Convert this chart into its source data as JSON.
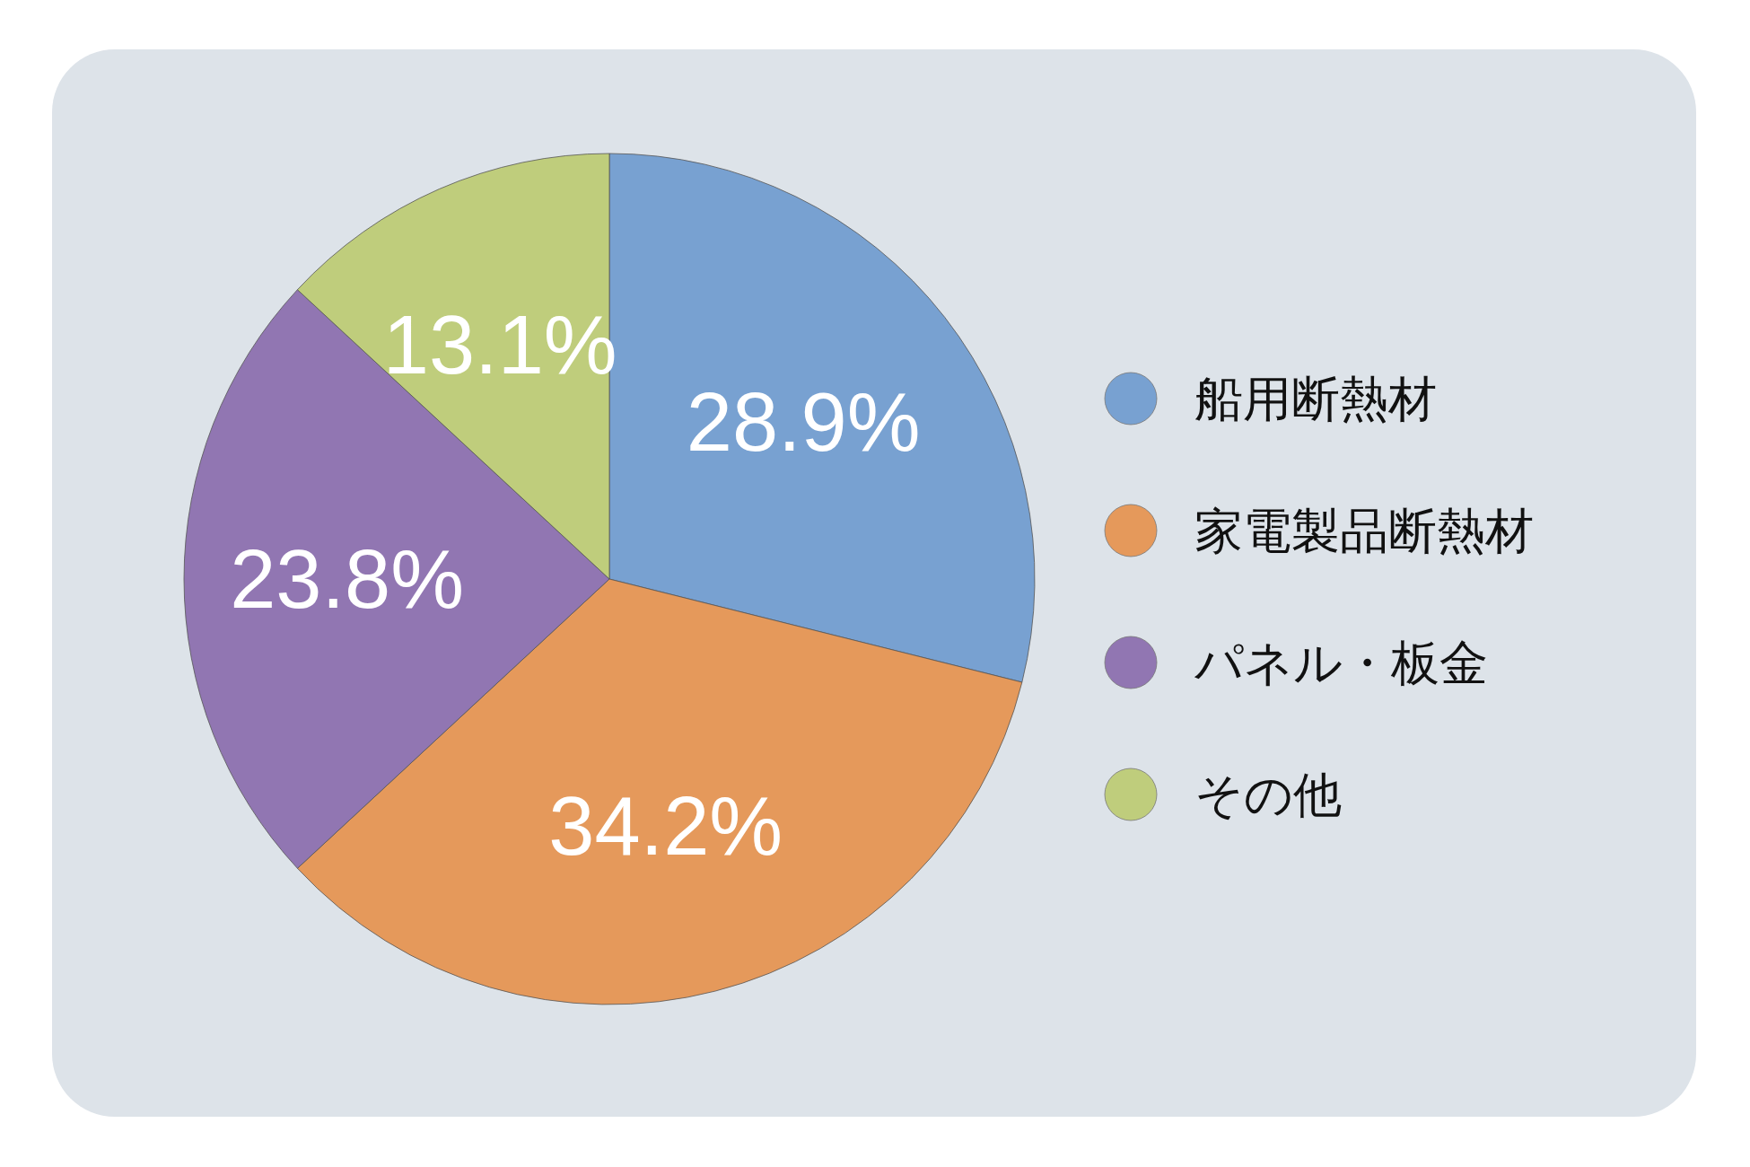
{
  "chart_data": {
    "type": "pie",
    "categories": [
      "船用断熱材",
      "家電製品断熱材",
      "パネル・板金",
      "その他"
    ],
    "values": [
      28.9,
      34.2,
      23.8,
      13.1
    ],
    "colors": [
      "#78a1d1",
      "#e5995b",
      "#9176b2",
      "#bfcd7c"
    ],
    "value_labels": [
      "28.9%",
      "34.2%",
      "23.8%",
      "13.1%"
    ],
    "legend": "right"
  }
}
